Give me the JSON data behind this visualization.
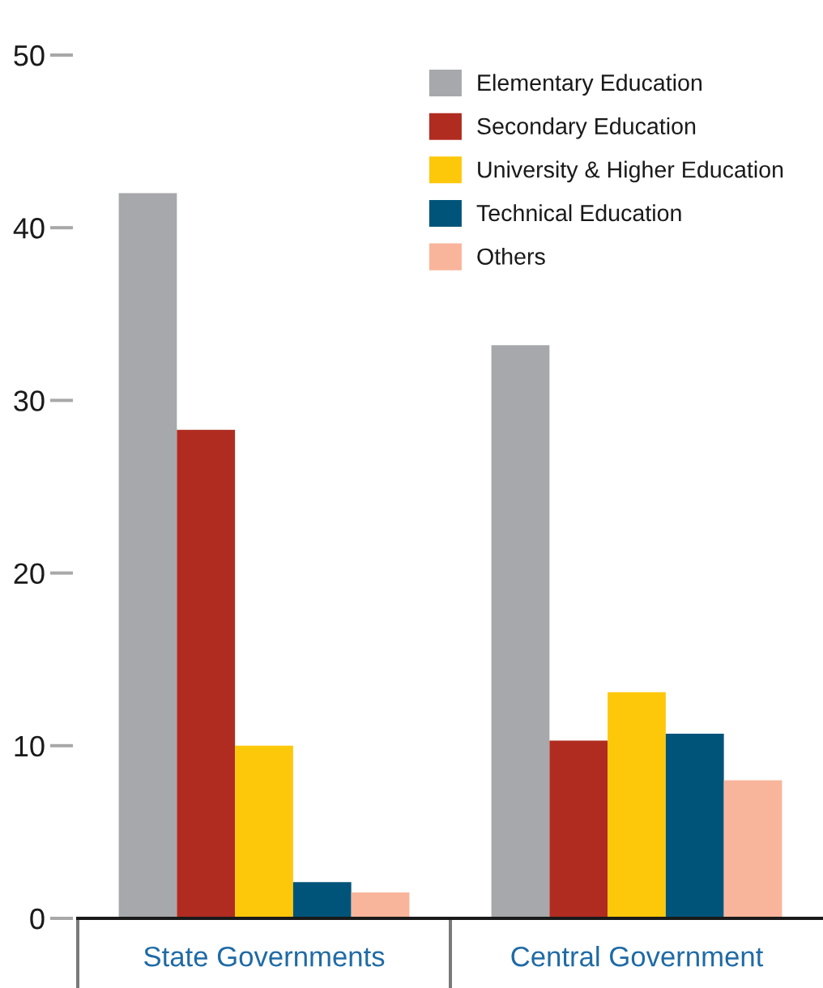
{
  "chart_data": {
    "type": "bar",
    "categories": [
      "State Governments",
      "Central Government"
    ],
    "series": [
      {
        "name": "Elementary Education",
        "color": "#a7a8ab",
        "values": [
          42.0,
          33.2
        ]
      },
      {
        "name": "Secondary Education",
        "color": "#b02c21",
        "values": [
          28.3,
          10.3
        ]
      },
      {
        "name": "University & Higher Education",
        "color": "#fec80a",
        "values": [
          10.0,
          13.1
        ]
      },
      {
        "name": "Technical Education",
        "color": "#00547a",
        "values": [
          2.1,
          10.7
        ]
      },
      {
        "name": "Others",
        "color": "#f9b59b",
        "values": [
          1.5,
          8.0
        ]
      }
    ],
    "ylim": [
      0,
      50
    ],
    "yticks": [
      0,
      10,
      20,
      30,
      40,
      50
    ],
    "legend": "top right"
  }
}
